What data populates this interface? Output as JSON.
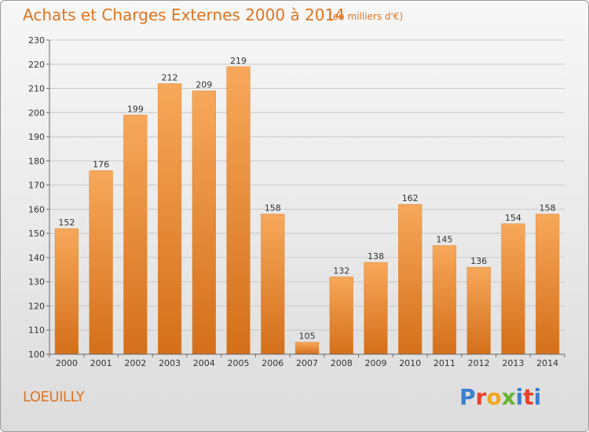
{
  "header": {
    "title": "Achats et Charges Externes 2000 à 2014",
    "subtitle": "(en milliers d'€)"
  },
  "footer": {
    "commune": "LOEUILLY",
    "logo_letters": [
      "P",
      "r",
      "o",
      "x",
      "i",
      "t",
      "i"
    ],
    "logo_colors": [
      "#3a7fd0",
      "#e8412c",
      "#f2a81d",
      "#66b32e",
      "#3a7fd0",
      "#e8412c",
      "#3a7fd0"
    ]
  },
  "chart_data": {
    "type": "bar",
    "categories": [
      "2000",
      "2001",
      "2002",
      "2003",
      "2004",
      "2005",
      "2006",
      "2007",
      "2008",
      "2009",
      "2010",
      "2011",
      "2012",
      "2013",
      "2014"
    ],
    "values": [
      152,
      176,
      199,
      212,
      209,
      219,
      158,
      105,
      132,
      138,
      162,
      145,
      136,
      154,
      158
    ],
    "ylim": [
      100,
      230
    ],
    "yticks": [
      100,
      110,
      120,
      130,
      140,
      150,
      160,
      170,
      180,
      190,
      200,
      210,
      220,
      230
    ],
    "grid": true,
    "bar_color_top": "#f7a85a",
    "bar_color_bottom": "#d46f1a"
  }
}
